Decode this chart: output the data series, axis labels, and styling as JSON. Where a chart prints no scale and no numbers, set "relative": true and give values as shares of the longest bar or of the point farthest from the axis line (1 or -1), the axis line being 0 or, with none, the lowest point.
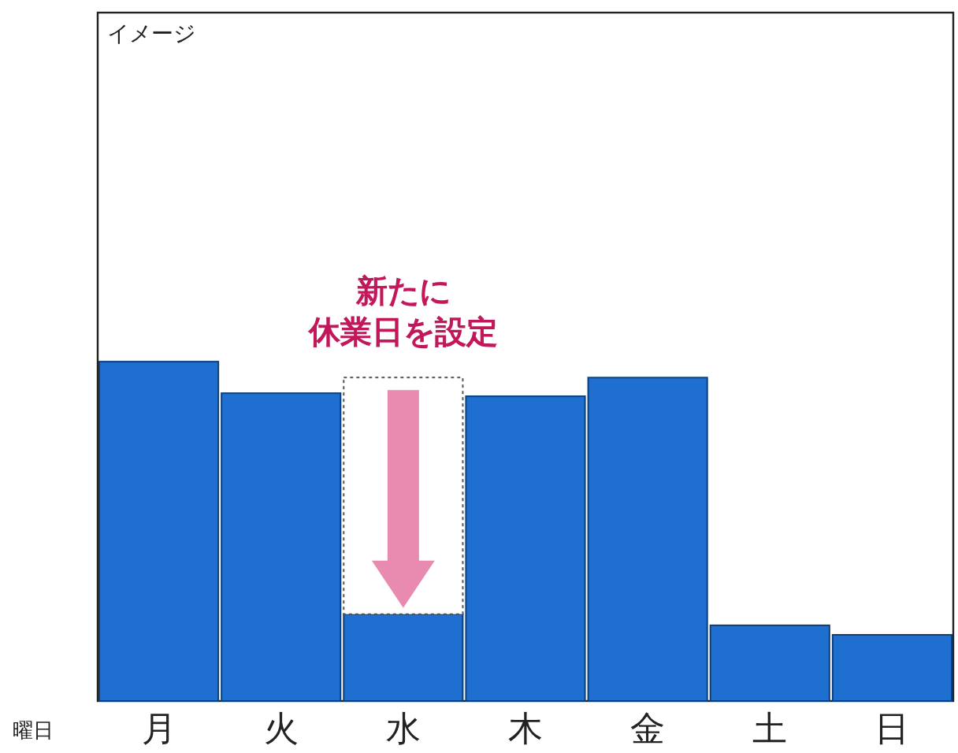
{
  "chart_data": {
    "type": "bar",
    "relative": true,
    "xlabel": "曜日",
    "categories": [
      "月",
      "火",
      "水",
      "木",
      "金",
      "土",
      "日"
    ],
    "series": [
      {
        "color": "#1f6fd0",
        "values": [
          1,
          0.907,
          0.256,
          0.898,
          0.953,
          0.223,
          0.195
        ]
      }
    ],
    "annotations": [
      "イメージ",
      "新たに",
      "休業日を設定"
    ]
  }
}
